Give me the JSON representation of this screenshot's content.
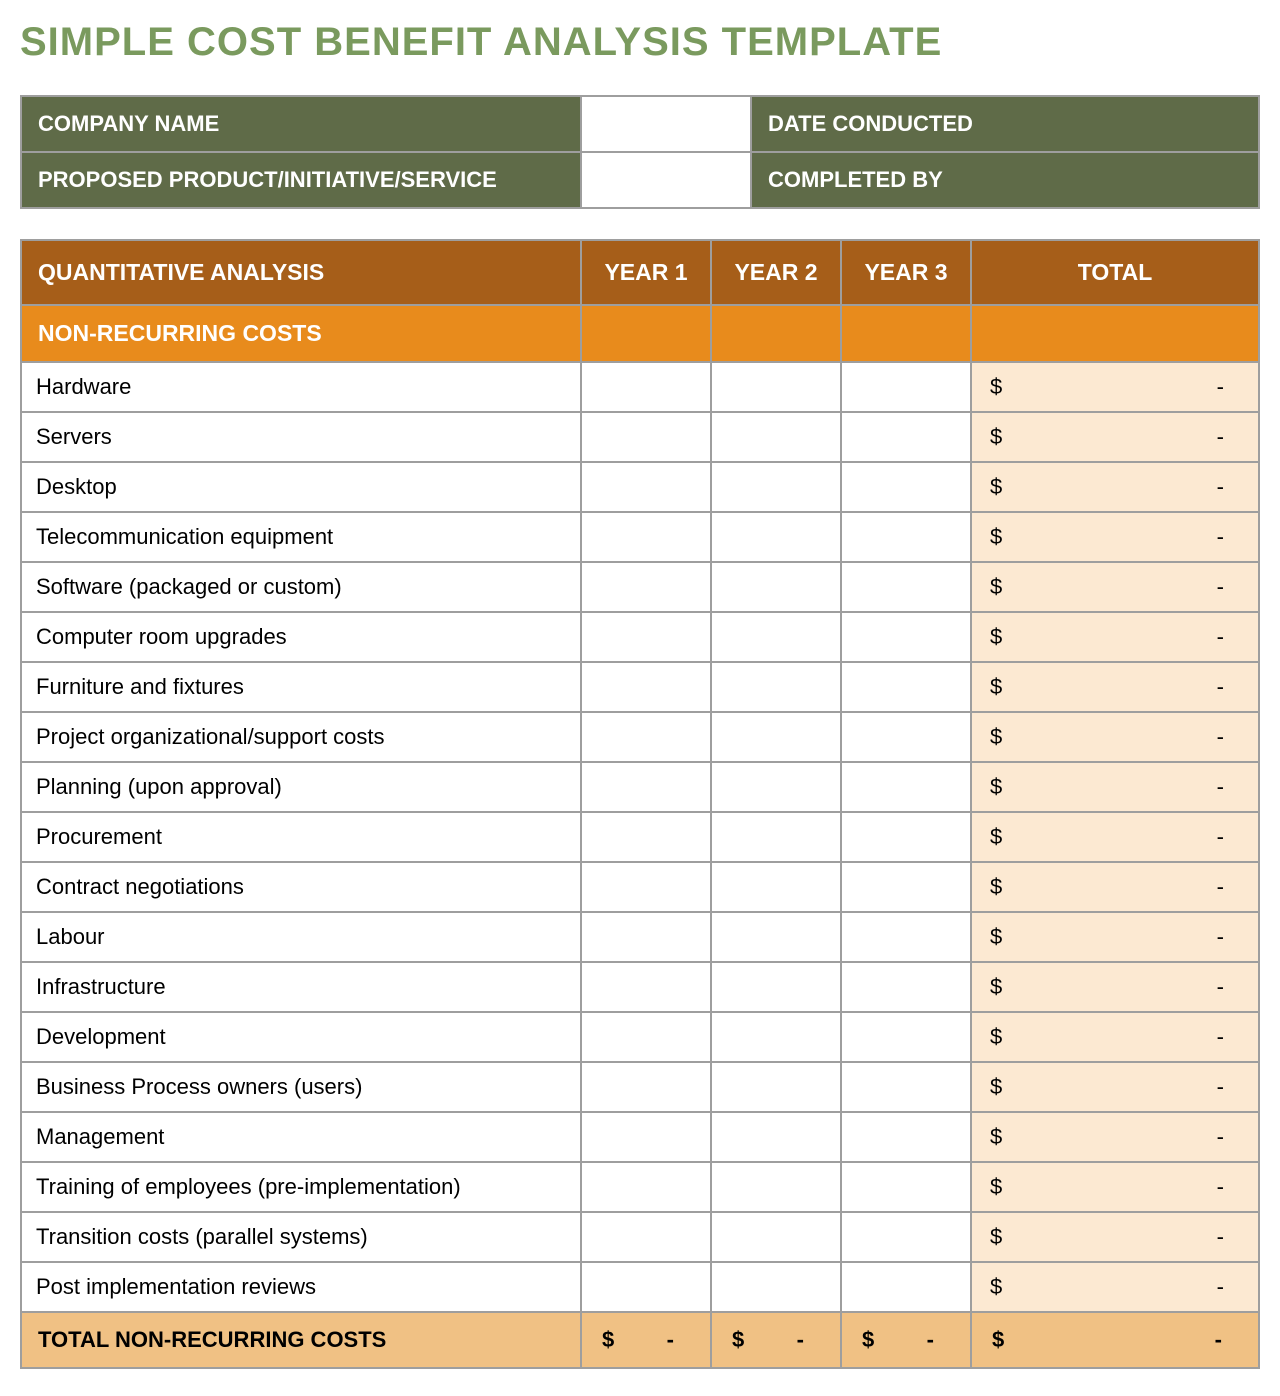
{
  "title": "SIMPLE COST BENEFIT ANALYSIS TEMPLATE",
  "colors": {
    "title": "#7a9a5e",
    "info_bg": "#5f6b48",
    "header_bg": "#a65e19",
    "section_bg": "#e88b1c",
    "total_cell_bg": "#fce9d2",
    "total_row_bg": "#f0c184",
    "border": "#9e9e9e",
    "white": "#ffffff",
    "black": "#000000"
  },
  "info": {
    "company_name_label": "COMPANY NAME",
    "date_conducted_label": "DATE CONDUCTED",
    "proposed_label": "PROPOSED PRODUCT/INITIATIVE/SERVICE",
    "completed_by_label": "COMPLETED BY"
  },
  "headers": {
    "analysis": "QUANTITATIVE ANALYSIS",
    "year1": "YEAR 1",
    "year2": "YEAR 2",
    "year3": "YEAR 3",
    "total": "TOTAL"
  },
  "section_label": "NON-RECURRING COSTS",
  "currency_symbol": "$",
  "empty_value": "-",
  "rows": [
    "Hardware",
    "Servers",
    "Desktop",
    "Telecommunication equipment",
    "Software (packaged or custom)",
    "Computer room upgrades",
    "Furniture and fixtures",
    "Project organizational/support costs",
    "Planning (upon approval)",
    "Procurement",
    "Contract negotiations",
    "Labour",
    "Infrastructure",
    "Development",
    "Business Process owners (users)",
    "Management",
    "Training of employees (pre-implementation)",
    "Transition costs (parallel systems)",
    "Post implementation reviews"
  ],
  "total_row_label": "TOTAL NON-RECURRING COSTS"
}
